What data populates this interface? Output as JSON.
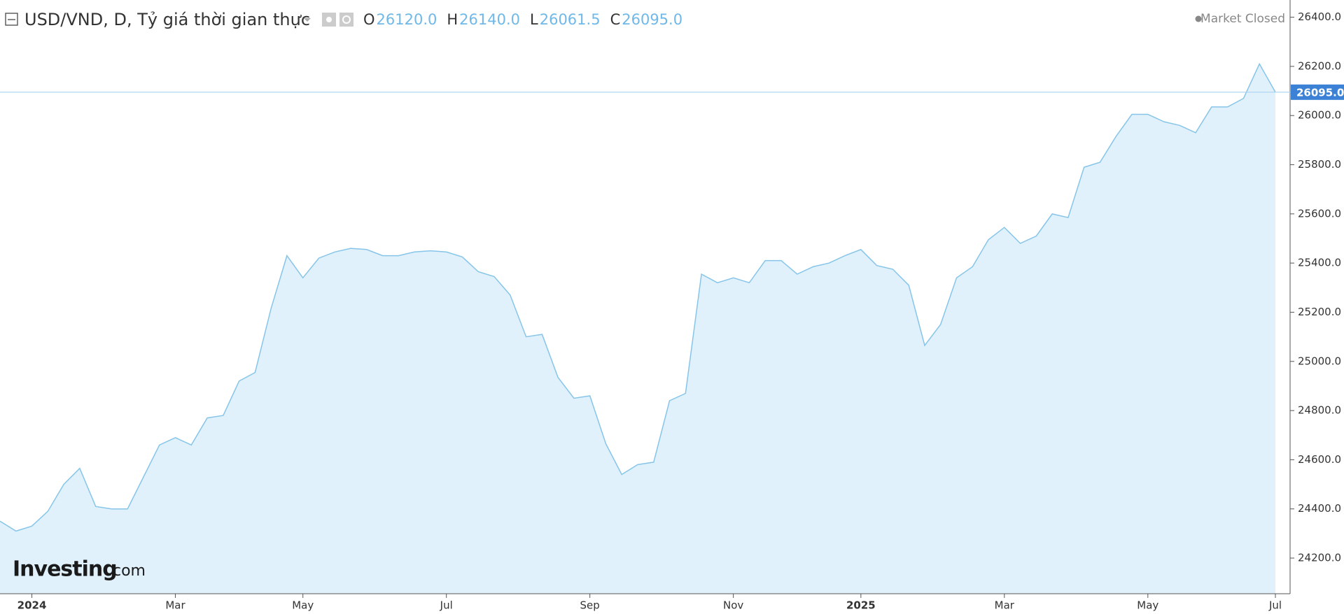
{
  "chart_data": {
    "type": "area",
    "title": "USD/VND, D, Tỷ giá thời gian thực",
    "status": "Market Closed",
    "ohlc": [
      {
        "name": "O",
        "value": 26120,
        "label": "26120.0"
      },
      {
        "name": "H",
        "value": 26140,
        "label": "26140.0"
      },
      {
        "name": "L",
        "value": 26061.5,
        "label": "26061.5"
      },
      {
        "name": "C",
        "value": 26095,
        "label": "26095.0"
      }
    ],
    "categories": [
      null,
      null,
      "2024",
      null,
      null,
      null,
      null,
      null,
      null,
      null,
      null,
      "Mar",
      null,
      null,
      null,
      null,
      null,
      null,
      null,
      "May",
      null,
      null,
      null,
      null,
      null,
      null,
      null,
      null,
      "Jul",
      null,
      null,
      null,
      null,
      null,
      null,
      null,
      null,
      "Sep",
      null,
      null,
      null,
      null,
      null,
      null,
      null,
      null,
      "Nov",
      null,
      null,
      null,
      null,
      null,
      null,
      null,
      "2025",
      null,
      null,
      null,
      null,
      null,
      null,
      null,
      null,
      "Mar",
      null,
      null,
      null,
      null,
      null,
      null,
      null,
      null,
      "May",
      null,
      null,
      null,
      null,
      null,
      null,
      null,
      "Jul"
    ],
    "values": [
      24350,
      24310,
      24330,
      24390,
      24500,
      24565,
      24410,
      24400,
      24400,
      24530,
      24660,
      24690,
      24660,
      24770,
      24780,
      24920,
      24955,
      25215,
      25430,
      25340,
      25420,
      25445,
      25460,
      25455,
      25430,
      25430,
      25445,
      25450,
      25445,
      25425,
      25365,
      25345,
      25270,
      25100,
      25110,
      24935,
      24850,
      24860,
      24665,
      24540,
      24580,
      24590,
      24840,
      24870,
      25355,
      25320,
      25340,
      25320,
      25410,
      25410,
      25355,
      25385,
      25400,
      25430,
      25455,
      25390,
      25375,
      25310,
      25065,
      25150,
      25340,
      25385,
      25495,
      25545,
      25480,
      25510,
      25600,
      25585,
      25790,
      25810,
      25915,
      26005,
      26005,
      25975,
      25960,
      25930,
      26035,
      26035,
      26070,
      26210,
      26095
    ],
    "color": "#86c5e9",
    "fill": "#e0f1fc",
    "ylim": [
      24055,
      26470
    ],
    "yticks": [
      {
        "value": 24200,
        "label": "24200.0"
      },
      {
        "value": 24400,
        "label": "24400.0"
      },
      {
        "value": 24600,
        "label": "24600.0"
      },
      {
        "value": 24800,
        "label": "24800.0"
      },
      {
        "value": 25000,
        "label": "25000.0"
      },
      {
        "value": 25200,
        "label": "25200.0"
      },
      {
        "value": 25400,
        "label": "25400.0"
      },
      {
        "value": 25600,
        "label": "25600.0"
      },
      {
        "value": 25800,
        "label": "25800.0"
      },
      {
        "value": 26000,
        "label": "26000.0"
      },
      {
        "value": 26200,
        "label": "26200.0"
      },
      {
        "value": 26400,
        "label": "26400.0"
      }
    ]
  },
  "watermark": {
    "brand": "Investing",
    "suffix": ".com"
  }
}
